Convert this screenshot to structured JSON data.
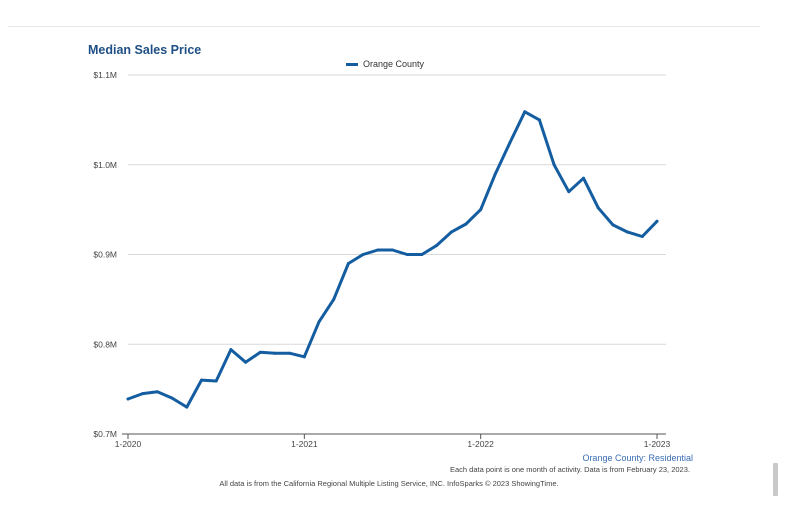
{
  "colors": {
    "series": "#145da0",
    "grid": "#d9d9d9",
    "title": "#1f4f85",
    "subtitle": "#3a6db5"
  },
  "chart_data": {
    "type": "line",
    "title": "Median Sales Price",
    "subtitle": "Orange County: Residential",
    "note": "Each data point is one month of activity. Data is from February 23, 2023.",
    "source": "All data is from the California Regional Multiple Listing Service, INC. InfoSparks © 2023 ShowingTime.",
    "legend": {
      "position": "top-center",
      "entries": [
        "Orange County"
      ]
    },
    "grid": true,
    "ylim": [
      0.7,
      1.1
    ],
    "yticks": [
      {
        "value": 0.7,
        "label": "$0.7M"
      },
      {
        "value": 0.8,
        "label": "$0.8M"
      },
      {
        "value": 0.9,
        "label": "$0.9M"
      },
      {
        "value": 1.0,
        "label": "$1.0M"
      },
      {
        "value": 1.1,
        "label": "$1.1M"
      }
    ],
    "xticks": [
      {
        "value": "2020-01",
        "label": "1-2020"
      },
      {
        "value": "2021-01",
        "label": "1-2021"
      },
      {
        "value": "2022-01",
        "label": "1-2022"
      },
      {
        "value": "2023-01",
        "label": "1-2023"
      }
    ],
    "x": [
      "2020-01",
      "2020-02",
      "2020-03",
      "2020-04",
      "2020-05",
      "2020-06",
      "2020-07",
      "2020-08",
      "2020-09",
      "2020-10",
      "2020-11",
      "2020-12",
      "2021-01",
      "2021-02",
      "2021-03",
      "2021-04",
      "2021-05",
      "2021-06",
      "2021-07",
      "2021-08",
      "2021-09",
      "2021-10",
      "2021-11",
      "2021-12",
      "2022-01",
      "2022-02",
      "2022-03",
      "2022-04",
      "2022-05",
      "2022-06",
      "2022-07",
      "2022-08",
      "2022-09",
      "2022-10",
      "2022-11",
      "2022-12",
      "2023-01"
    ],
    "series": [
      {
        "name": "Orange County",
        "values": [
          0.739,
          0.745,
          0.747,
          0.74,
          0.73,
          0.76,
          0.759,
          0.794,
          0.78,
          0.791,
          0.79,
          0.79,
          0.786,
          0.825,
          0.85,
          0.89,
          0.9,
          0.905,
          0.905,
          0.9,
          0.9,
          0.91,
          0.925,
          0.934,
          0.95,
          0.99,
          1.025,
          1.059,
          1.05,
          1.0,
          0.97,
          0.985,
          0.952,
          0.933,
          0.925,
          0.92,
          0.937
        ]
      }
    ]
  }
}
